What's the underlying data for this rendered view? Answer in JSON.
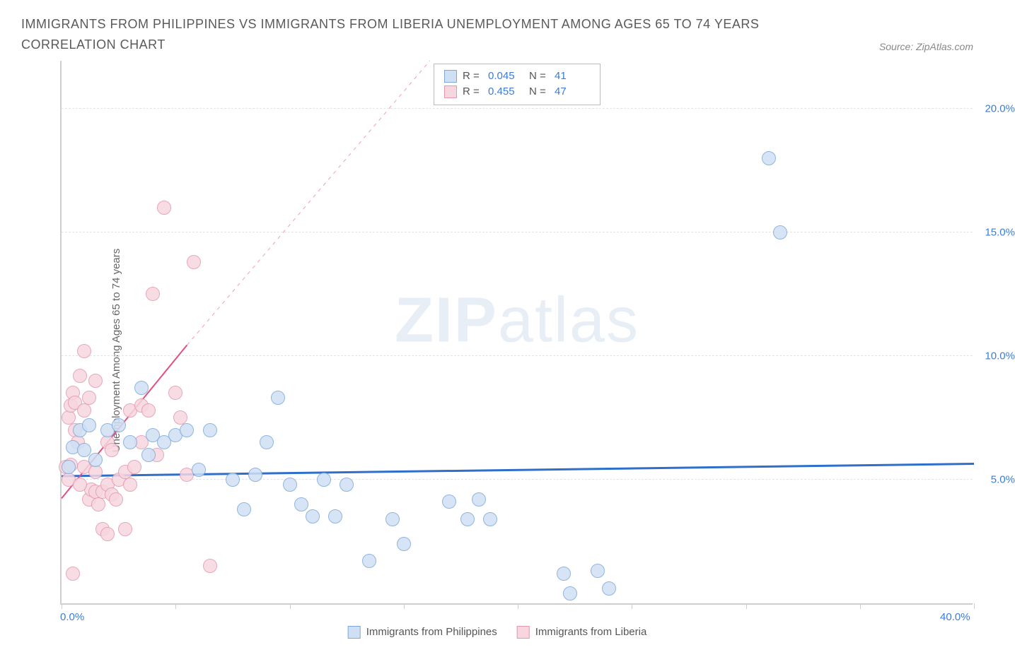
{
  "title": "IMMIGRANTS FROM PHILIPPINES VS IMMIGRANTS FROM LIBERIA UNEMPLOYMENT AMONG AGES 65 TO 74 YEARS CORRELATION CHART",
  "source": "Source: ZipAtlas.com",
  "y_label": "Unemployment Among Ages 65 to 74 years",
  "watermark": {
    "bold": "ZIP",
    "light": "atlas"
  },
  "chart": {
    "type": "scatter",
    "background_color": "#ffffff",
    "grid_color": "#e4e4e4",
    "axis_color": "#cfcfcf",
    "xlim": [
      0,
      40
    ],
    "ylim": [
      0,
      22
    ],
    "x_ticks": [
      0,
      5,
      10,
      15,
      20,
      25,
      30,
      35,
      40
    ],
    "x_tick_labels": {
      "0": "0.0%",
      "40": "40.0%"
    },
    "y_gridlines": [
      5,
      10,
      15,
      20
    ],
    "y_tick_labels": {
      "5": "5.0%",
      "10": "10.0%",
      "15": "15.0%",
      "20": "20.0%"
    },
    "marker_radius": 10,
    "marker_stroke_width": 1.5,
    "axis_label_color": "#3b7dd8",
    "axis_label_fontsize": 15,
    "series": [
      {
        "key": "philippines",
        "legend_label": "Immigrants from Philippines",
        "fill": "#cfe0f5",
        "stroke": "#7fa8d8",
        "trend_color": "#2f6fc9",
        "trend_width": 3,
        "trend_dash": "none",
        "trend": {
          "x1": 0,
          "y1": 5.2,
          "x2": 40,
          "y2": 5.7
        },
        "stats": {
          "R": "0.045",
          "N": "41"
        },
        "points": [
          [
            0.3,
            5.5
          ],
          [
            0.5,
            6.3
          ],
          [
            0.8,
            7.0
          ],
          [
            1.0,
            6.2
          ],
          [
            1.2,
            7.2
          ],
          [
            1.5,
            5.8
          ],
          [
            2.0,
            7.0
          ],
          [
            2.5,
            7.2
          ],
          [
            3.0,
            6.5
          ],
          [
            3.5,
            8.7
          ],
          [
            4.0,
            6.8
          ],
          [
            4.5,
            6.5
          ],
          [
            5.0,
            6.8
          ],
          [
            5.5,
            7.0
          ],
          [
            6.0,
            5.4
          ],
          [
            6.5,
            7.0
          ],
          [
            7.5,
            5.0
          ],
          [
            8.0,
            3.8
          ],
          [
            8.5,
            5.2
          ],
          [
            9.5,
            8.3
          ],
          [
            10.0,
            4.8
          ],
          [
            10.5,
            4.0
          ],
          [
            11.0,
            3.5
          ],
          [
            11.5,
            5.0
          ],
          [
            12.0,
            3.5
          ],
          [
            12.5,
            4.8
          ],
          [
            14.5,
            3.4
          ],
          [
            17.0,
            4.1
          ],
          [
            17.8,
            3.4
          ],
          [
            18.3,
            4.2
          ],
          [
            18.8,
            3.4
          ],
          [
            15.0,
            2.4
          ],
          [
            13.5,
            1.7
          ],
          [
            22.0,
            1.2
          ],
          [
            22.3,
            0.4
          ],
          [
            23.5,
            1.3
          ],
          [
            24.0,
            0.6
          ],
          [
            31.5,
            15.0
          ],
          [
            31.0,
            18.0
          ],
          [
            9.0,
            6.5
          ],
          [
            3.8,
            6.0
          ]
        ]
      },
      {
        "key": "liberia",
        "legend_label": "Immigrants from Liberia",
        "fill": "#f7d6e0",
        "stroke": "#e498b0",
        "trend_color": "#e05080",
        "trend_width": 2,
        "trend_dash": "solid_then_dash",
        "trend": {
          "x1": 0,
          "y1": 4.3,
          "x2": 5.5,
          "y2": 10.5,
          "x2_dash": 18,
          "y2_dash": 24
        },
        "stats": {
          "R": "0.455",
          "N": "47"
        },
        "points": [
          [
            0.2,
            5.5
          ],
          [
            0.3,
            5.0
          ],
          [
            0.4,
            5.6
          ],
          [
            0.3,
            7.5
          ],
          [
            0.4,
            8.0
          ],
          [
            0.5,
            8.5
          ],
          [
            0.6,
            8.1
          ],
          [
            0.6,
            7.0
          ],
          [
            0.8,
            9.2
          ],
          [
            0.7,
            6.5
          ],
          [
            1.0,
            7.8
          ],
          [
            1.0,
            5.5
          ],
          [
            1.2,
            8.3
          ],
          [
            1.2,
            4.2
          ],
          [
            1.3,
            4.6
          ],
          [
            1.5,
            5.3
          ],
          [
            1.5,
            4.5
          ],
          [
            1.6,
            4.0
          ],
          [
            1.8,
            4.5
          ],
          [
            1.8,
            3.0
          ],
          [
            2.0,
            4.8
          ],
          [
            2.0,
            6.5
          ],
          [
            2.2,
            4.4
          ],
          [
            2.2,
            6.2
          ],
          [
            2.4,
            4.2
          ],
          [
            2.5,
            5.0
          ],
          [
            2.8,
            3.0
          ],
          [
            2.8,
            5.3
          ],
          [
            3.0,
            4.8
          ],
          [
            3.0,
            7.8
          ],
          [
            3.2,
            5.5
          ],
          [
            3.5,
            8.0
          ],
          [
            3.5,
            6.5
          ],
          [
            3.8,
            7.8
          ],
          [
            4.0,
            12.5
          ],
          [
            4.2,
            6.0
          ],
          [
            4.5,
            16.0
          ],
          [
            5.0,
            8.5
          ],
          [
            5.2,
            7.5
          ],
          [
            5.8,
            13.8
          ],
          [
            5.5,
            5.2
          ],
          [
            6.5,
            1.5
          ],
          [
            1.0,
            10.2
          ],
          [
            0.5,
            1.2
          ],
          [
            2.0,
            2.8
          ],
          [
            1.5,
            9.0
          ],
          [
            0.8,
            4.8
          ]
        ]
      }
    ]
  },
  "legend_top_labels": {
    "R": "R =",
    "N": "N ="
  }
}
